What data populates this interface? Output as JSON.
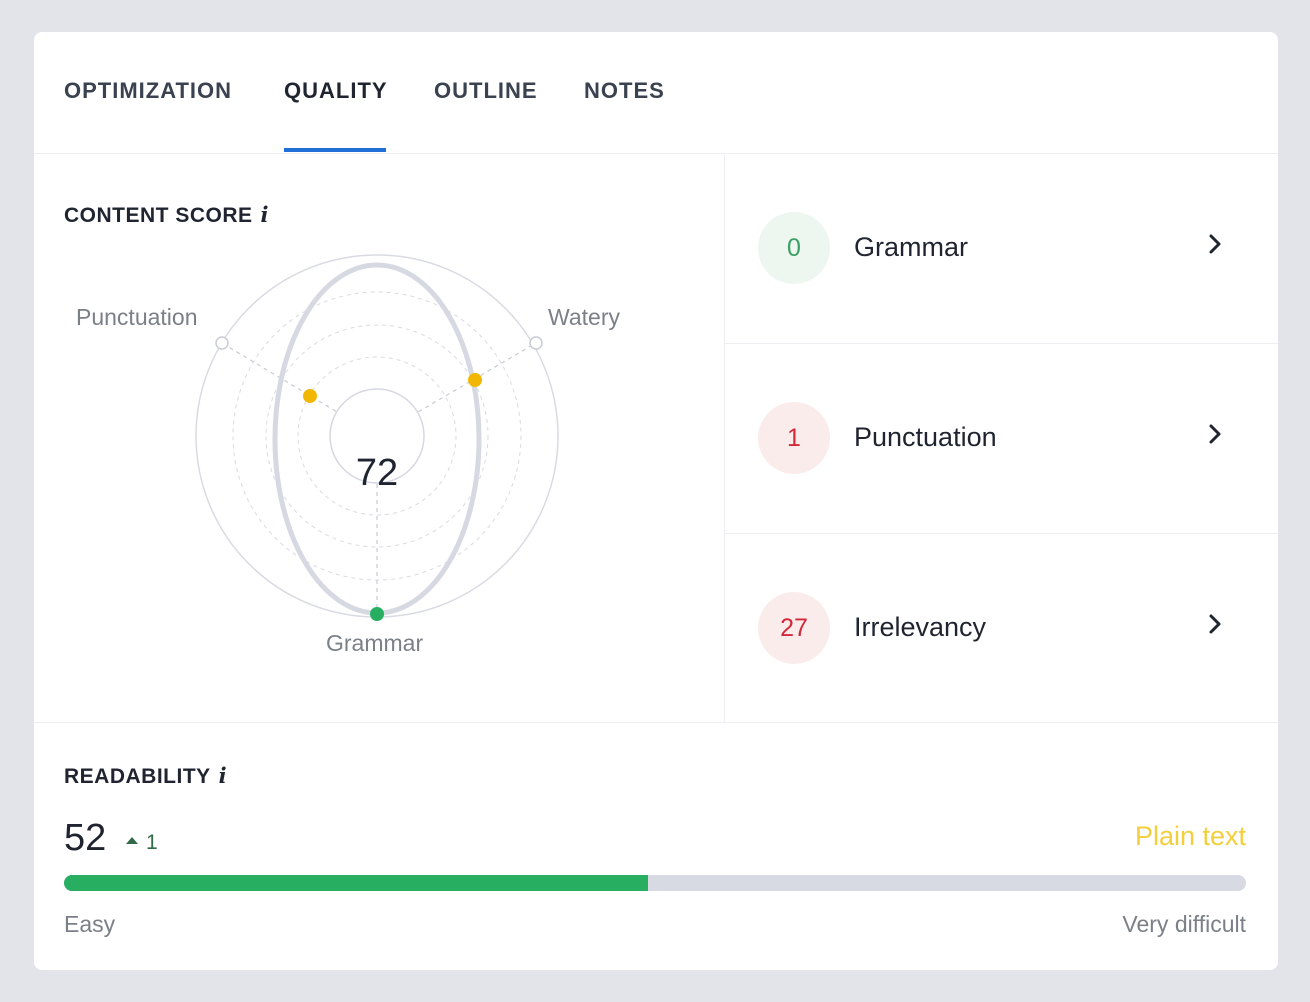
{
  "tabs": [
    {
      "label": "OPTIMIZATION",
      "active": false
    },
    {
      "label": "QUALITY",
      "active": true
    },
    {
      "label": "OUTLINE",
      "active": false
    },
    {
      "label": "NOTES",
      "active": false
    }
  ],
  "content_score": {
    "title": "CONTENT SCORE",
    "info_icon": "i",
    "score": "72",
    "axes": [
      "Punctuation",
      "Watery",
      "Grammar"
    ]
  },
  "issues": [
    {
      "count": "0",
      "label": "Grammar",
      "status": "good"
    },
    {
      "count": "1",
      "label": "Punctuation",
      "status": "bad"
    },
    {
      "count": "27",
      "label": "Irrelevancy",
      "status": "bad"
    }
  ],
  "readability": {
    "title": "READABILITY",
    "info_icon": "i",
    "score": "52",
    "delta": "1",
    "level": "Plain text",
    "progress_fraction": 0.494,
    "min_label": "Easy",
    "max_label": "Very difficult"
  },
  "colors": {
    "accent": "#1f6fd6",
    "good": "#27ae60",
    "warning": "#f2b705",
    "bad": "#d2283a",
    "level": "#f3cf3c"
  }
}
